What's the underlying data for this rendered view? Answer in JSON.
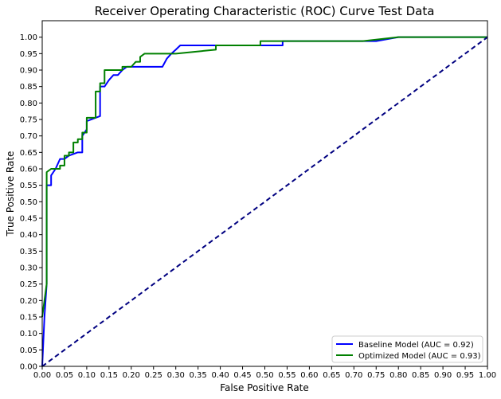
{
  "chart_data": {
    "type": "line",
    "title": "Receiver Operating Characteristic (ROC) Curve Test Data",
    "xlabel": "False Positive Rate",
    "ylabel": "True Positive Rate",
    "xlim": [
      0,
      1
    ],
    "ylim": [
      0,
      1.05
    ],
    "xticks": [
      "0.00",
      "0.05",
      "0.10",
      "0.15",
      "0.20",
      "0.25",
      "0.30",
      "0.35",
      "0.40",
      "0.45",
      "0.50",
      "0.55",
      "0.60",
      "0.65",
      "0.70",
      "0.75",
      "0.80",
      "0.85",
      "0.90",
      "0.95",
      "1.00"
    ],
    "yticks": [
      "0.00",
      "0.05",
      "0.10",
      "0.15",
      "0.20",
      "0.25",
      "0.30",
      "0.35",
      "0.40",
      "0.45",
      "0.50",
      "0.55",
      "0.60",
      "0.65",
      "0.70",
      "0.75",
      "0.80",
      "0.85",
      "0.90",
      "0.95",
      "1.00"
    ],
    "grid": false,
    "legend_position": "lower-right",
    "series": [
      {
        "name": "Baseline Model (AUC = 0.92)",
        "color": "#0000ff",
        "x": [
          0,
          0.005,
          0.01,
          0.01,
          0.02,
          0.02,
          0.03,
          0.04,
          0.05,
          0.06,
          0.08,
          0.09,
          0.09,
          0.1,
          0.1,
          0.13,
          0.13,
          0.14,
          0.15,
          0.16,
          0.17,
          0.18,
          0.19,
          0.2,
          0.27,
          0.28,
          0.29,
          0.3,
          0.31,
          0.35,
          0.39,
          0.45,
          0.48,
          0.54,
          0.54,
          0.7,
          0.75,
          0.8,
          0.83,
          1.0
        ],
        "y": [
          0,
          0.15,
          0.25,
          0.55,
          0.55,
          0.58,
          0.6,
          0.63,
          0.63,
          0.64,
          0.65,
          0.65,
          0.7,
          0.72,
          0.745,
          0.76,
          0.85,
          0.85,
          0.87,
          0.885,
          0.885,
          0.9,
          0.91,
          0.91,
          0.91,
          0.935,
          0.95,
          0.962,
          0.975,
          0.975,
          0.975,
          0.975,
          0.975,
          0.975,
          0.988,
          0.988,
          0.988,
          1.0,
          1.0,
          1.0
        ]
      },
      {
        "name": "Optimized Model (AUC = 0.93)",
        "color": "#008000",
        "x": [
          0,
          0.005,
          0.01,
          0.01,
          0.02,
          0.03,
          0.04,
          0.04,
          0.05,
          0.05,
          0.06,
          0.06,
          0.07,
          0.07,
          0.08,
          0.08,
          0.09,
          0.09,
          0.1,
          0.1,
          0.12,
          0.12,
          0.13,
          0.13,
          0.14,
          0.14,
          0.18,
          0.18,
          0.2,
          0.21,
          0.22,
          0.22,
          0.23,
          0.3,
          0.39,
          0.39,
          0.49,
          0.49,
          0.72,
          0.8,
          1.0
        ],
        "y": [
          0.15,
          0.2,
          0.25,
          0.59,
          0.6,
          0.6,
          0.6,
          0.61,
          0.61,
          0.64,
          0.64,
          0.65,
          0.65,
          0.68,
          0.68,
          0.69,
          0.69,
          0.71,
          0.71,
          0.755,
          0.755,
          0.835,
          0.835,
          0.86,
          0.86,
          0.9,
          0.9,
          0.91,
          0.91,
          0.925,
          0.925,
          0.94,
          0.95,
          0.95,
          0.962,
          0.975,
          0.975,
          0.988,
          0.988,
          1.0,
          1.0
        ]
      },
      {
        "name": "",
        "color": "#000080",
        "dashed": true,
        "x": [
          0,
          1
        ],
        "y": [
          0,
          1
        ]
      }
    ]
  }
}
